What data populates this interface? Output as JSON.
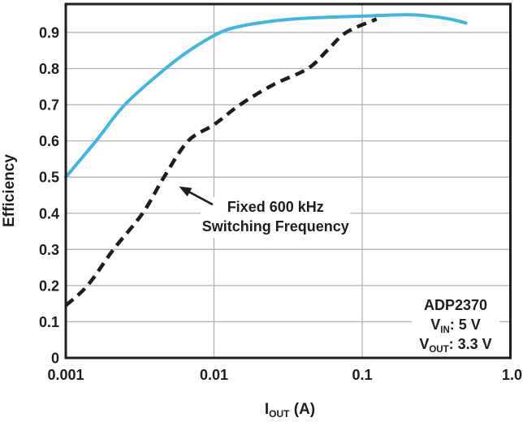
{
  "chart_data": {
    "type": "line",
    "title": "",
    "ylabel": "Efficiency",
    "xlabel": {
      "base": "I",
      "sub": "OUT",
      "rest": " (A)"
    },
    "x_scale": "log",
    "xlim": [
      0.001,
      1.0
    ],
    "ylim": [
      0,
      0.98
    ],
    "grid": true,
    "legend_position": "none",
    "x_ticks": [
      {
        "value": 0.001,
        "label": "0.001"
      },
      {
        "value": 0.01,
        "label": "0.01"
      },
      {
        "value": 0.1,
        "label": "0.1"
      },
      {
        "value": 1.0,
        "label": "1.0"
      }
    ],
    "y_ticks": [
      {
        "value": 0,
        "label": "0"
      },
      {
        "value": 0.1,
        "label": "0.1"
      },
      {
        "value": 0.2,
        "label": "0.2"
      },
      {
        "value": 0.3,
        "label": "0.3"
      },
      {
        "value": 0.4,
        "label": "0.4"
      },
      {
        "value": 0.5,
        "label": "0.5"
      },
      {
        "value": 0.6,
        "label": "0.6"
      },
      {
        "value": 0.7,
        "label": "0.7"
      },
      {
        "value": 0.8,
        "label": "0.8"
      },
      {
        "value": 0.9,
        "label": "0.9"
      }
    ],
    "series": [
      {
        "name": "solid-curve-unlabeled",
        "style": "solid",
        "color": "#3eb7e2",
        "stroke_width": 4,
        "points": [
          [
            0.001,
            0.5
          ],
          [
            0.0016,
            0.6
          ],
          [
            0.0025,
            0.7
          ],
          [
            0.0047,
            0.8
          ],
          [
            0.007,
            0.853
          ],
          [
            0.011,
            0.9
          ],
          [
            0.015,
            0.917
          ],
          [
            0.02,
            0.926
          ],
          [
            0.03,
            0.935
          ],
          [
            0.05,
            0.941
          ],
          [
            0.1,
            0.945
          ],
          [
            0.2,
            0.949
          ],
          [
            0.3,
            0.944
          ],
          [
            0.4,
            0.936
          ],
          [
            0.5,
            0.926
          ]
        ]
      },
      {
        "name": "fixed-600khz-switching-frequency",
        "style": "dashed",
        "color": "#1d1d1d",
        "stroke_width": 4.5,
        "dash": [
          12,
          7.5
        ],
        "points": [
          [
            0.001,
            0.145
          ],
          [
            0.0014,
            0.2
          ],
          [
            0.0021,
            0.3
          ],
          [
            0.0033,
            0.4
          ],
          [
            0.0046,
            0.5
          ],
          [
            0.0067,
            0.6
          ],
          [
            0.01,
            0.645
          ],
          [
            0.015,
            0.7
          ],
          [
            0.025,
            0.755
          ],
          [
            0.043,
            0.8
          ],
          [
            0.058,
            0.85
          ],
          [
            0.078,
            0.9
          ],
          [
            0.125,
            0.937
          ]
        ]
      }
    ],
    "annotation": {
      "lines": [
        "Fixed 600 kHz",
        "Switching Frequency"
      ],
      "target_series": "fixed-600khz-switching-frequency",
      "arrow_tip": [
        0.0058,
        0.474
      ],
      "arrow_tail": [
        0.0098,
        0.424
      ],
      "text_center": [
        0.026,
        0.39
      ]
    },
    "inset_label": {
      "lines": [
        {
          "base": "ADP2370",
          "sub": "",
          "rest": ""
        },
        {
          "base": "V",
          "sub": "IN",
          "rest": ": 5 V"
        },
        {
          "base": "V",
          "sub": "OUT",
          "rest": ": 3.3 V"
        }
      ]
    },
    "colors": {
      "background": "#ffffff",
      "axis": "#1d1d1d",
      "grid": "#b3b3b3",
      "text": "#1d1d1d",
      "accent": "#3eb7e2"
    }
  }
}
